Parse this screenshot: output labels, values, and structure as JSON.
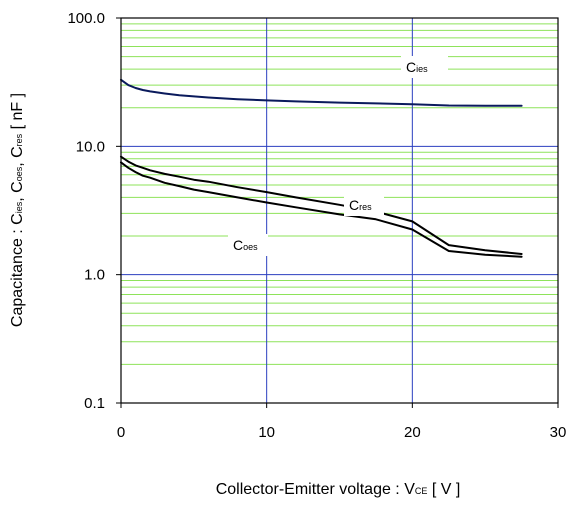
{
  "chart_data": {
    "type": "line",
    "xlabel": {
      "main": "Collector-Emitter voltage : V",
      "sub": "CE",
      "unit": " [ V ]"
    },
    "ylabel": {
      "prefix": "Capacitance : C",
      "sub1": "ies",
      "sep1": ", C",
      "sub2": "oes",
      "sep2": ", C",
      "sub3": "res",
      "unit": " [ nF ]"
    },
    "xlim": [
      0,
      30
    ],
    "ylim": [
      0.1,
      100
    ],
    "y_scale": "log",
    "x_ticks": [
      "0",
      "10",
      "20",
      "30"
    ],
    "y_ticks": [
      "0.1",
      "1.0",
      "10.0",
      "100.0"
    ],
    "grid": {
      "major": true,
      "minor": true,
      "major_color": "#2b3fbf",
      "minor_color": "#8ee35a"
    },
    "series": [
      {
        "name": "Cies",
        "label": {
          "base": "C",
          "sub": "ies"
        },
        "color": "#0a1a5c",
        "x": [
          0,
          0.5,
          1,
          1.5,
          2,
          3,
          4,
          5,
          6,
          8,
          10,
          12,
          15,
          17.5,
          20,
          22.5,
          25,
          27.5
        ],
        "y": [
          33,
          30,
          28.5,
          27.5,
          26.8,
          25.8,
          25.0,
          24.5,
          24.0,
          23.3,
          22.8,
          22.4,
          21.9,
          21.6,
          21.3,
          20.8,
          20.7,
          20.7
        ]
      },
      {
        "name": "Cres",
        "label": {
          "base": "C",
          "sub": "res"
        },
        "color": "#000000",
        "x": [
          0,
          0.5,
          1,
          1.5,
          2,
          3,
          4,
          5,
          6,
          8,
          10,
          12,
          15,
          17.5,
          20,
          22.5,
          25,
          27.5
        ],
        "y": [
          8.3,
          7.6,
          7.1,
          6.8,
          6.5,
          6.1,
          5.8,
          5.5,
          5.3,
          4.8,
          4.4,
          4.0,
          3.5,
          3.1,
          2.6,
          1.7,
          1.55,
          1.45
        ]
      },
      {
        "name": "Coes",
        "label": {
          "base": "C",
          "sub": "oes"
        },
        "color": "#000000",
        "x": [
          0,
          0.5,
          1,
          1.5,
          2,
          3,
          4,
          5,
          6,
          8,
          10,
          12,
          15,
          17.5,
          20,
          22.5,
          25,
          27.5
        ],
        "y": [
          7.5,
          6.8,
          6.3,
          5.9,
          5.7,
          5.2,
          4.9,
          4.6,
          4.4,
          4.0,
          3.65,
          3.35,
          2.95,
          2.7,
          2.25,
          1.53,
          1.43,
          1.38
        ]
      }
    ]
  }
}
